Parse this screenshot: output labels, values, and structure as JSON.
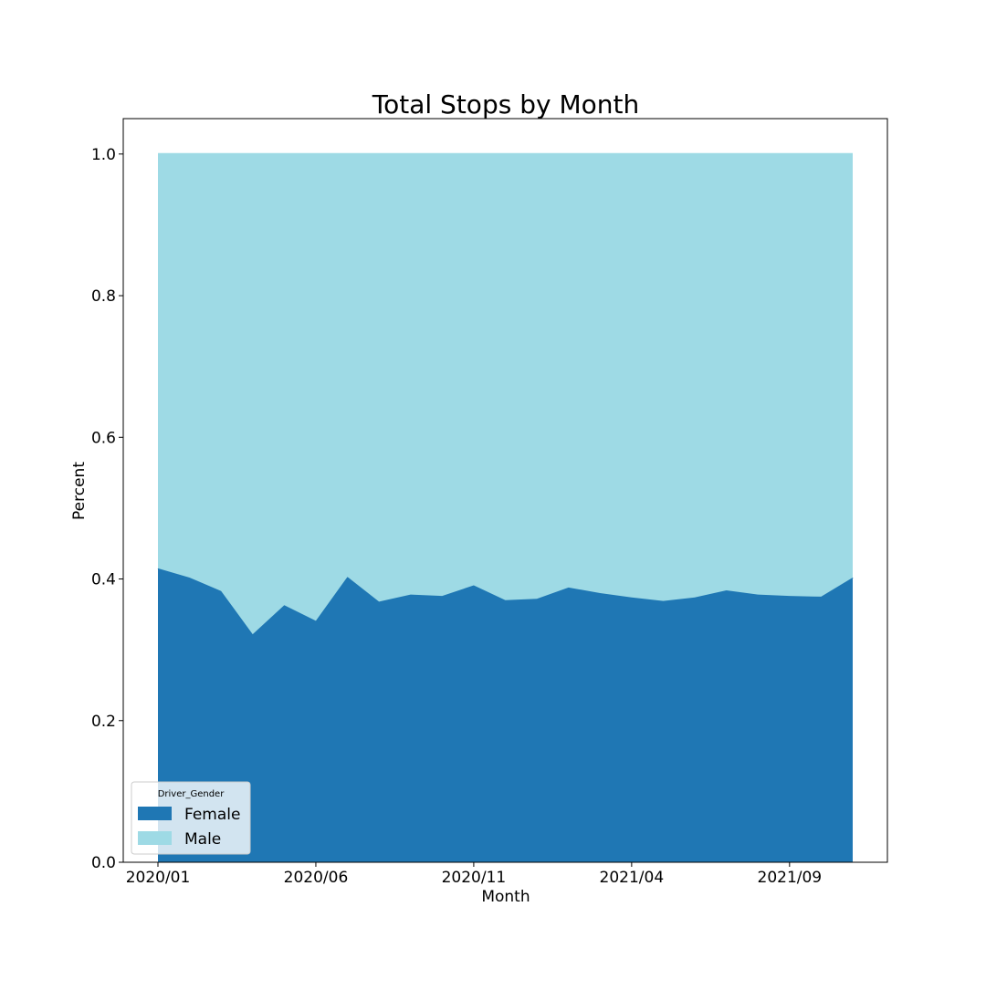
{
  "chart_data": {
    "type": "area",
    "stacked": true,
    "title": "Total Stops by Month",
    "xlabel": "Month",
    "ylabel": "Percent",
    "x": [
      "2020/01",
      "2020/02",
      "2020/03",
      "2020/04",
      "2020/05",
      "2020/06",
      "2020/07",
      "2020/08",
      "2020/09",
      "2020/10",
      "2020/11",
      "2020/12",
      "2021/01",
      "2021/02",
      "2021/03",
      "2021/04",
      "2021/05",
      "2021/06",
      "2021/07",
      "2021/08",
      "2021/09",
      "2021/10",
      "2021/11"
    ],
    "x_ticks": [
      "2020/01",
      "2020/06",
      "2020/11",
      "2021/04",
      "2021/09"
    ],
    "ylim": [
      0,
      1.05
    ],
    "y_ticks": [
      "0.0",
      "0.2",
      "0.4",
      "0.6",
      "0.8",
      "1.0"
    ],
    "grid": false,
    "legend": {
      "title": "Driver_Gender",
      "placement": "lower-left"
    },
    "series": [
      {
        "name": "Female",
        "color": "#1f77b4",
        "values": [
          0.415,
          0.402,
          0.383,
          0.322,
          0.363,
          0.341,
          0.403,
          0.368,
          0.378,
          0.376,
          0.391,
          0.37,
          0.372,
          0.388,
          0.38,
          0.374,
          0.369,
          0.374,
          0.384,
          0.378,
          0.376,
          0.375,
          0.402
        ]
      },
      {
        "name": "Male",
        "color": "#9edae5",
        "values": [
          0.585,
          0.598,
          0.617,
          0.678,
          0.637,
          0.659,
          0.597,
          0.632,
          0.622,
          0.624,
          0.609,
          0.63,
          0.628,
          0.612,
          0.62,
          0.626,
          0.631,
          0.626,
          0.616,
          0.622,
          0.624,
          0.625,
          0.598
        ]
      }
    ]
  }
}
